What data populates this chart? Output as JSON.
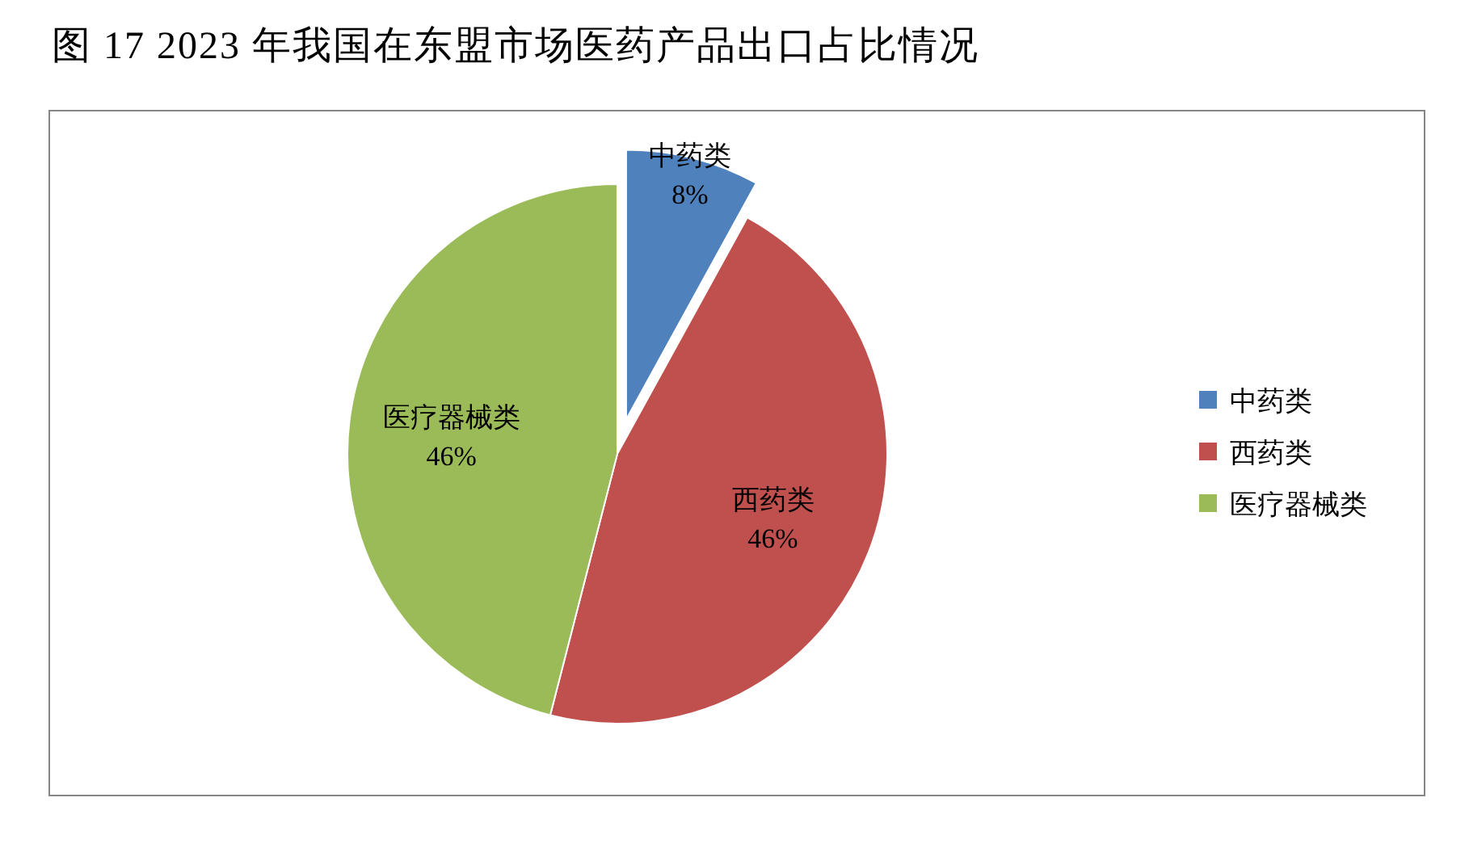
{
  "chart_data": {
    "type": "pie",
    "title": "图 17 2023 年我国在东盟市场医药产品出口占比情况",
    "categories": [
      "中药类",
      "西药类",
      "医疗器械类"
    ],
    "values": [
      8,
      46,
      46
    ],
    "colors": [
      "#4f81bd",
      "#c0504d",
      "#9bbb59"
    ],
    "value_labels": [
      "8%",
      "46%",
      "46%"
    ],
    "legend": "right"
  }
}
